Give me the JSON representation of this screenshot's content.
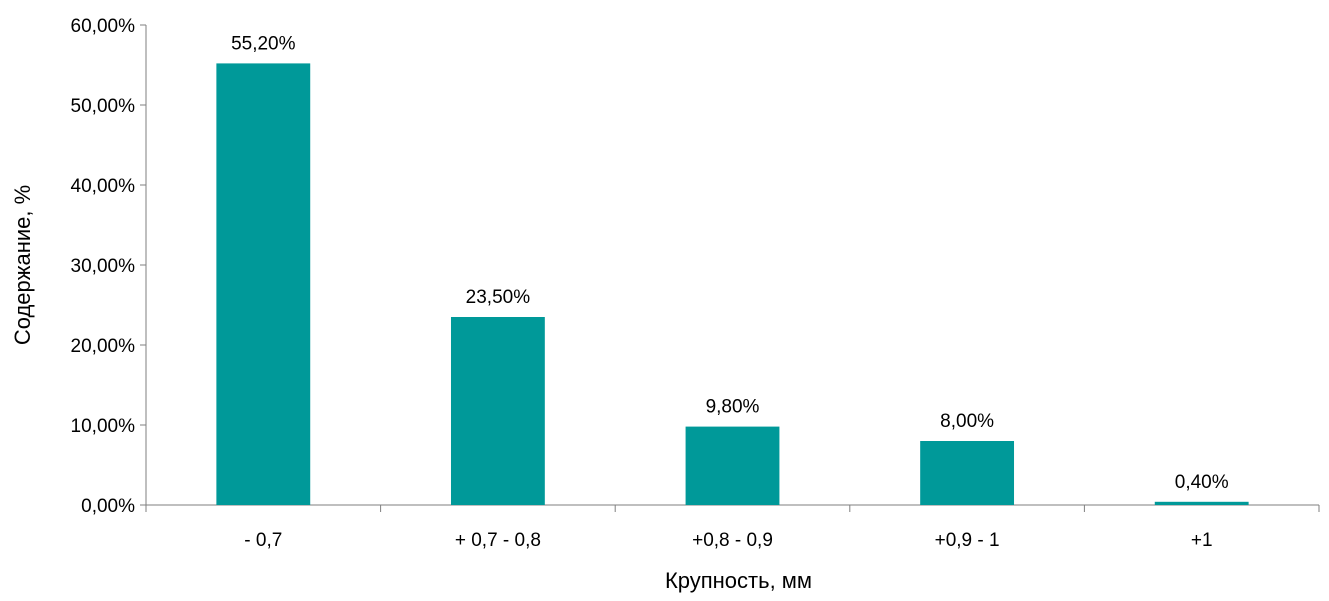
{
  "chart_data": {
    "type": "bar",
    "categories": [
      "- 0,7",
      "+ 0,7 - 0,8",
      "+0,8 - 0,9",
      "+0,9 - 1",
      "+1"
    ],
    "values": [
      55.2,
      23.5,
      9.8,
      8.0,
      0.4
    ],
    "data_labels": [
      "55,20%",
      "23,50%",
      "9,80%",
      "8,00%",
      "0,40%"
    ],
    "title": "",
    "xlabel": "Крупность, мм",
    "ylabel": "Содержание, %",
    "ylim": [
      0,
      60
    ],
    "y_ticks": [
      {
        "value": 0,
        "label": "0,00%"
      },
      {
        "value": 10,
        "label": "10,00%"
      },
      {
        "value": 20,
        "label": "20,00%"
      },
      {
        "value": 30,
        "label": "30,00%"
      },
      {
        "value": 40,
        "label": "40,00%"
      },
      {
        "value": 50,
        "label": "50,00%"
      },
      {
        "value": 60,
        "label": "60,00%"
      }
    ],
    "grid": false,
    "legend": "none",
    "bar_color": "#009999",
    "axis_color": "#7f7f7f"
  }
}
